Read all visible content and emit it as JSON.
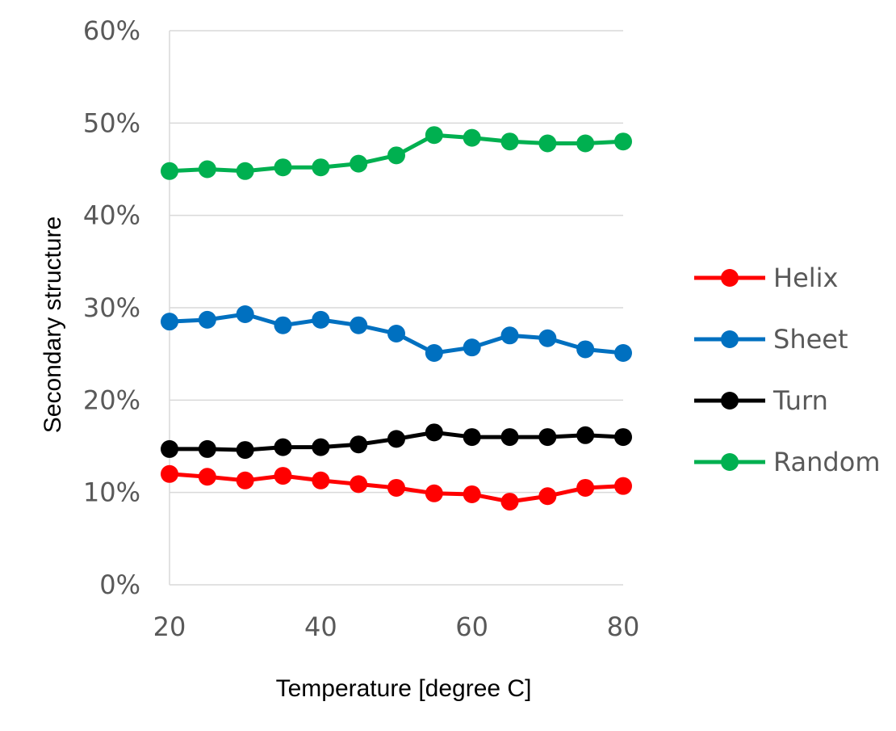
{
  "chart_data": {
    "type": "line",
    "xlabel": "Temperature [degree C]",
    "ylabel": "Secondary structure",
    "x": [
      20,
      25,
      30,
      35,
      40,
      45,
      50,
      55,
      60,
      65,
      70,
      75,
      80
    ],
    "xlim": [
      20,
      80
    ],
    "ylim": [
      0,
      0.6
    ],
    "x_ticks": [
      20,
      40,
      60,
      80
    ],
    "x_tick_labels": [
      "20",
      "40",
      "60",
      "80"
    ],
    "y_ticks": [
      0,
      0.1,
      0.2,
      0.3,
      0.4,
      0.5,
      0.6
    ],
    "y_tick_labels": [
      "0%",
      "10%",
      "20%",
      "30%",
      "40%",
      "50%",
      "60%"
    ],
    "grid": "horizontal",
    "legend_position": "right",
    "series": [
      {
        "name": "Helix",
        "color": "#ff0000",
        "values": [
          0.12,
          0.117,
          0.113,
          0.118,
          0.113,
          0.109,
          0.105,
          0.099,
          0.098,
          0.09,
          0.096,
          0.105,
          0.107
        ]
      },
      {
        "name": "Sheet",
        "color": "#0070c0",
        "values": [
          0.285,
          0.287,
          0.293,
          0.281,
          0.287,
          0.281,
          0.272,
          0.251,
          0.257,
          0.27,
          0.267,
          0.255,
          0.251
        ]
      },
      {
        "name": "Turn",
        "color": "#000000",
        "values": [
          0.147,
          0.147,
          0.146,
          0.149,
          0.149,
          0.152,
          0.158,
          0.165,
          0.16,
          0.16,
          0.16,
          0.162,
          0.16
        ]
      },
      {
        "name": "Random",
        "color": "#00b050",
        "values": [
          0.448,
          0.45,
          0.448,
          0.452,
          0.452,
          0.456,
          0.465,
          0.487,
          0.484,
          0.48,
          0.478,
          0.478,
          0.48
        ]
      }
    ]
  }
}
